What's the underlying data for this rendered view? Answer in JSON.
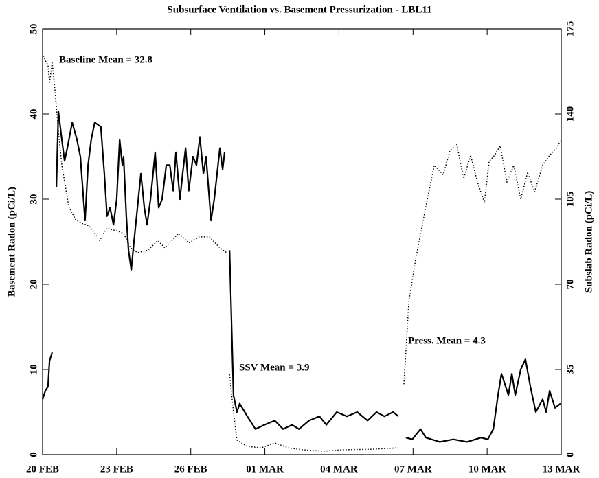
{
  "chart_data": {
    "type": "line",
    "title": "Subsurface Ventilation vs. Basement Pressurization - LBL11",
    "ylabel": "Basement Radon (pCi/L)",
    "y2label": "Subslab Radon (pCi/L)",
    "annotations": [
      "Baseline Mean = 32.8",
      "SSV Mean = 3.9",
      "Press. Mean = 4.3"
    ],
    "xlim": [
      0,
      21
    ],
    "xticks": [
      {
        "value": 0,
        "label": "20 FEB"
      },
      {
        "value": 3,
        "label": "23 FEB"
      },
      {
        "value": 6,
        "label": "26 FEB"
      },
      {
        "value": 9,
        "label": "01 MAR"
      },
      {
        "value": 12,
        "label": "04 MAR"
      },
      {
        "value": 15,
        "label": "07 MAR"
      },
      {
        "value": 18,
        "label": "10 MAR"
      },
      {
        "value": 21,
        "label": "13 MAR"
      }
    ],
    "ylim": [
      0,
      50
    ],
    "yticks": [
      0,
      10,
      20,
      30,
      40,
      50
    ],
    "y2lim": [
      0,
      175
    ],
    "y2ticks": [
      0,
      35,
      70,
      105,
      140,
      175
    ],
    "series": [
      {
        "name": "Basement Radon",
        "color": "#000000",
        "style": "solid",
        "x": [
          0,
          0.11,
          0.22,
          0.28,
          0.39,
          null,
          0.56,
          0.64,
          0.78,
          0.89,
          1.0,
          1.2,
          1.39,
          1.53,
          1.72,
          1.84,
          1.97,
          2.11,
          2.36,
          2.5,
          2.61,
          2.73,
          2.87,
          3.0,
          3.12,
          3.23,
          3.28,
          3.39,
          3.48,
          3.59,
          3.7,
          3.84,
          3.98,
          4.12,
          4.23,
          4.37,
          4.56,
          4.7,
          4.84,
          5.01,
          5.15,
          5.29,
          5.4,
          5.56,
          5.67,
          5.79,
          5.92,
          6.09,
          6.23,
          6.37,
          6.51,
          6.62,
          6.82,
          6.95,
          7.18,
          7.29,
          7.37,
          null,
          7.57,
          7.73,
          7.87,
          7.98,
          8.29,
          8.62,
          8.98,
          9.4,
          9.74,
          10.1,
          10.38,
          10.79,
          11.21,
          11.49,
          11.91,
          12.32,
          12.74,
          13.16,
          13.52,
          13.84,
          14.19,
          14.41,
          null,
          14.71,
          14.97,
          15.3,
          15.52,
          16.08,
          16.63,
          17.19,
          17.75,
          18.03,
          18.25,
          18.44,
          18.58,
          18.75,
          18.86,
          19.0,
          19.14,
          19.36,
          19.55,
          19.75,
          19.97,
          20.25,
          20.39,
          20.53,
          20.75,
          20.97
        ],
        "values": [
          6.5,
          7.5,
          8,
          11,
          12,
          null,
          31.4,
          40.3,
          37,
          34.5,
          36,
          39,
          37,
          35,
          27.5,
          34,
          37,
          39,
          38.5,
          33,
          28,
          29,
          27,
          30,
          37,
          34,
          35,
          28,
          24,
          21.7,
          25,
          29,
          33,
          29,
          27,
          30,
          35.5,
          29,
          30,
          34,
          34,
          31,
          35.5,
          30,
          33,
          36,
          31,
          35,
          34,
          37.3,
          33,
          35,
          27.5,
          30,
          36,
          33.5,
          35.5,
          null,
          24,
          7,
          5,
          6,
          4.5,
          3,
          3.5,
          4,
          3,
          3.5,
          3,
          4,
          4.5,
          3.5,
          5,
          4.5,
          5,
          4,
          5,
          4.5,
          5,
          4.5,
          null,
          2,
          1.8,
          3,
          2,
          1.5,
          1.8,
          1.5,
          2,
          1.8,
          3,
          7,
          9.5,
          8,
          7,
          9.5,
          7,
          10,
          11.2,
          8,
          5,
          6.5,
          5,
          7.5,
          5.5,
          6
        ]
      },
      {
        "name": "Subslab Radon",
        "color": "#000000",
        "style": "dotted",
        "axis": "y2",
        "x": [
          0,
          0.11,
          0.22,
          0.28,
          0.39,
          0.5,
          0.64,
          0.78,
          1.06,
          1.34,
          1.61,
          1.89,
          2.31,
          2.59,
          3.0,
          3.28,
          3.56,
          3.84,
          4.26,
          4.67,
          4.95,
          5.51,
          5.92,
          6.34,
          6.76,
          7.18,
          7.45,
          null,
          7.57,
          7.73,
          7.87,
          8.29,
          8.85,
          9.4,
          9.96,
          10.51,
          11.35,
          12.18,
          13.3,
          14.41,
          null,
          14.63,
          14.83,
          15.1,
          15.52,
          15.86,
          16.22,
          16.5,
          16.77,
          17.05,
          17.33,
          17.61,
          17.89,
          18.08,
          18.3,
          18.53,
          18.8,
          19.08,
          19.36,
          19.64,
          19.92,
          20.25,
          20.53,
          20.81,
          20.97
        ],
        "values": [
          165,
          162,
          160,
          153,
          161,
          150,
          133,
          119,
          102,
          96.5,
          95,
          94,
          88,
          93,
          92,
          91,
          85,
          83,
          84,
          88,
          85,
          91,
          87,
          89.5,
          89.5,
          85,
          83,
          null,
          33,
          17.5,
          6,
          3.4,
          2.8,
          4.8,
          2.8,
          2,
          1.4,
          2,
          2.2,
          2.8,
          null,
          29,
          63,
          80,
          102,
          119,
          115,
          125,
          127.6,
          113.5,
          123,
          112,
          103.6,
          120.5,
          123,
          127,
          112,
          119,
          105,
          116,
          108,
          119,
          123,
          126,
          129
        ]
      }
    ]
  }
}
